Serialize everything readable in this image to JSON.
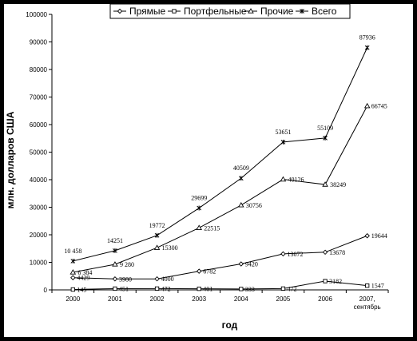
{
  "chart_data": {
    "type": "line",
    "categories": [
      "2000",
      "2001",
      "2002",
      "2003",
      "2004",
      "2005",
      "2006",
      "2007, сентябрь"
    ],
    "x_tick_labels": [
      [
        "2000"
      ],
      [
        "2001"
      ],
      [
        "2002"
      ],
      [
        "2003"
      ],
      [
        "2004"
      ],
      [
        "2005"
      ],
      [
        "2006"
      ],
      [
        "2007,",
        "сентябрь"
      ]
    ],
    "series": [
      {
        "name": "Прямые",
        "marker": "diamond",
        "values": [
          4429,
          3980,
          4000,
          6782,
          9420,
          13072,
          13678,
          19644
        ],
        "labels": [
          "4429",
          "3980",
          "4000",
          "6782",
          "9420",
          "13072",
          "13678",
          "19644"
        ]
      },
      {
        "name": "Портфельные",
        "marker": "square",
        "values": [
          145,
          451,
          472,
          401,
          333,
          472,
          3182,
          1547
        ],
        "labels": [
          "145",
          "451",
          "472",
          "401",
          "333",
          "472",
          "3182",
          "1547"
        ]
      },
      {
        "name": "Прочие",
        "marker": "triangle",
        "values": [
          6384,
          9280,
          15300,
          22515,
          30756,
          40126,
          38249,
          66745
        ],
        "labels": [
          "6 384",
          "9 280",
          "15300",
          "22515",
          "30756",
          "40126",
          "38249",
          "66745"
        ]
      },
      {
        "name": "Всего",
        "marker": "star",
        "values": [
          10458,
          14251,
          19772,
          29699,
          40509,
          53651,
          55109,
          87936
        ],
        "labels": [
          "10 458",
          "14251",
          "19772",
          "29699",
          "40509",
          "53651",
          "55109",
          "87936"
        ]
      }
    ],
    "y_ticks": [
      0,
      10000,
      20000,
      30000,
      40000,
      50000,
      60000,
      70000,
      80000,
      90000,
      100000
    ],
    "ylim": [
      0,
      100000
    ],
    "xlabel": "год",
    "ylabel": "млн. долларов США",
    "grid": false,
    "legend_position": "top"
  }
}
